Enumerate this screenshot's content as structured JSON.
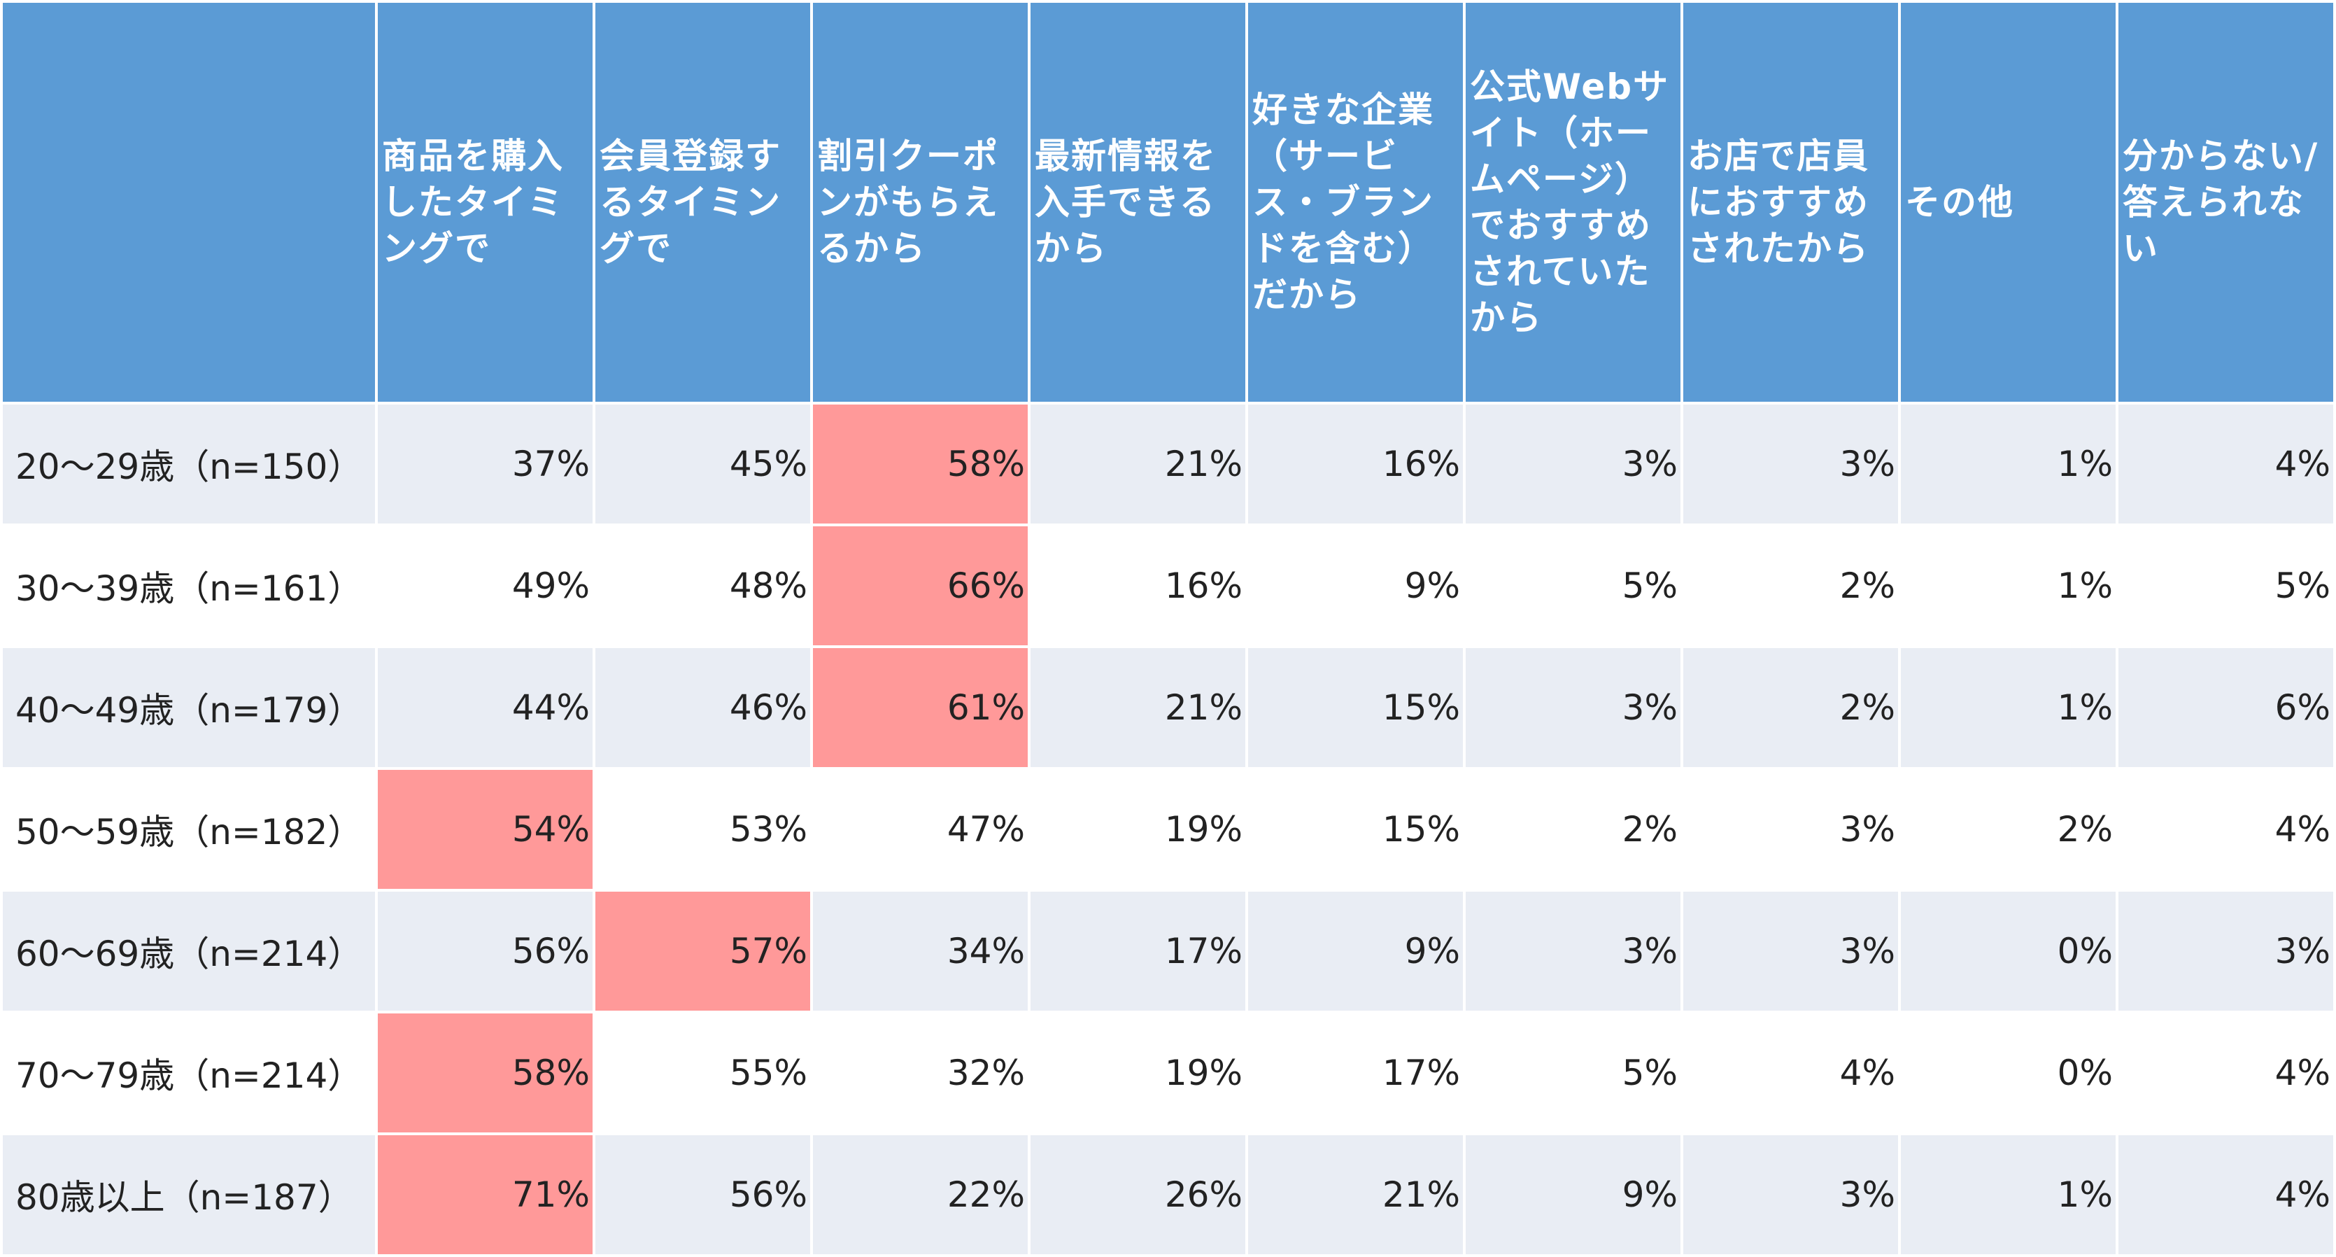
{
  "table": {
    "corner": "",
    "columns": [
      "商品を購入したタイミングで",
      "会員登録するタイミングで",
      "割引クーポンがもらえるから",
      "最新情報を入手できるから",
      "好きな企業（サービス・ブランドを含む）だから",
      "公式Webサイト（ホームページ）でおすすめされていたから",
      "お店で店員におすすめされたから",
      "その他",
      "分からない/答えられない"
    ],
    "rows": [
      {
        "label": "20〜29歳（n=150）",
        "values": [
          "37%",
          "45%",
          "58%",
          "21%",
          "16%",
          "3%",
          "3%",
          "1%",
          "4%"
        ]
      },
      {
        "label": "30〜39歳（n=161）",
        "values": [
          "49%",
          "48%",
          "66%",
          "16%",
          "9%",
          "5%",
          "2%",
          "1%",
          "5%"
        ]
      },
      {
        "label": "40〜49歳（n=179）",
        "values": [
          "44%",
          "46%",
          "61%",
          "21%",
          "15%",
          "3%",
          "2%",
          "1%",
          "6%"
        ]
      },
      {
        "label": "50〜59歳（n=182）",
        "values": [
          "54%",
          "53%",
          "47%",
          "19%",
          "15%",
          "2%",
          "3%",
          "2%",
          "4%"
        ]
      },
      {
        "label": "60〜69歳（n=214）",
        "values": [
          "56%",
          "57%",
          "34%",
          "17%",
          "9%",
          "3%",
          "3%",
          "0%",
          "3%"
        ]
      },
      {
        "label": "70〜79歳（n=214）",
        "values": [
          "58%",
          "55%",
          "32%",
          "19%",
          "17%",
          "5%",
          "4%",
          "0%",
          "4%"
        ]
      },
      {
        "label": "80歳以上（n=187）",
        "values": [
          "71%",
          "56%",
          "22%",
          "26%",
          "21%",
          "9%",
          "3%",
          "1%",
          "4%"
        ]
      }
    ],
    "highlight_color": "#ff9999",
    "header_color": "#5b9bd5"
  }
}
